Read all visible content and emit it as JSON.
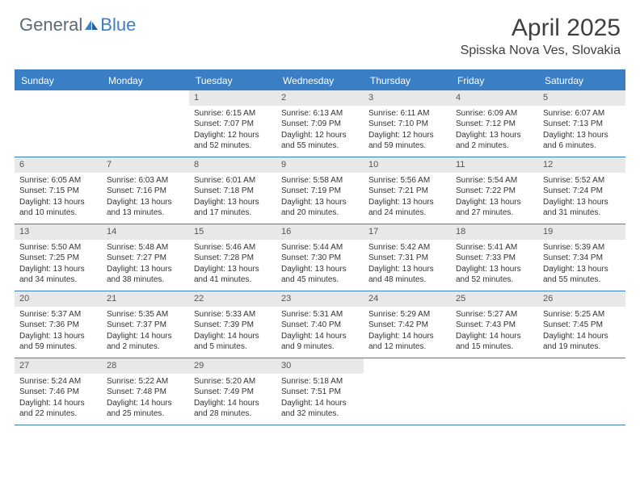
{
  "logo": {
    "general": "General",
    "blue": "Blue"
  },
  "title": "April 2025",
  "location": "Spisska Nova Ves, Slovakia",
  "header_bg": "#3a7fc4",
  "weekdays": [
    "Sunday",
    "Monday",
    "Tuesday",
    "Wednesday",
    "Thursday",
    "Friday",
    "Saturday"
  ],
  "weeks": [
    [
      {
        "num": "",
        "sunrise": "",
        "sunset": "",
        "daylight": ""
      },
      {
        "num": "",
        "sunrise": "",
        "sunset": "",
        "daylight": ""
      },
      {
        "num": "1",
        "sunrise": "Sunrise: 6:15 AM",
        "sunset": "Sunset: 7:07 PM",
        "daylight": "Daylight: 12 hours and 52 minutes."
      },
      {
        "num": "2",
        "sunrise": "Sunrise: 6:13 AM",
        "sunset": "Sunset: 7:09 PM",
        "daylight": "Daylight: 12 hours and 55 minutes."
      },
      {
        "num": "3",
        "sunrise": "Sunrise: 6:11 AM",
        "sunset": "Sunset: 7:10 PM",
        "daylight": "Daylight: 12 hours and 59 minutes."
      },
      {
        "num": "4",
        "sunrise": "Sunrise: 6:09 AM",
        "sunset": "Sunset: 7:12 PM",
        "daylight": "Daylight: 13 hours and 2 minutes."
      },
      {
        "num": "5",
        "sunrise": "Sunrise: 6:07 AM",
        "sunset": "Sunset: 7:13 PM",
        "daylight": "Daylight: 13 hours and 6 minutes."
      }
    ],
    [
      {
        "num": "6",
        "sunrise": "Sunrise: 6:05 AM",
        "sunset": "Sunset: 7:15 PM",
        "daylight": "Daylight: 13 hours and 10 minutes."
      },
      {
        "num": "7",
        "sunrise": "Sunrise: 6:03 AM",
        "sunset": "Sunset: 7:16 PM",
        "daylight": "Daylight: 13 hours and 13 minutes."
      },
      {
        "num": "8",
        "sunrise": "Sunrise: 6:01 AM",
        "sunset": "Sunset: 7:18 PM",
        "daylight": "Daylight: 13 hours and 17 minutes."
      },
      {
        "num": "9",
        "sunrise": "Sunrise: 5:58 AM",
        "sunset": "Sunset: 7:19 PM",
        "daylight": "Daylight: 13 hours and 20 minutes."
      },
      {
        "num": "10",
        "sunrise": "Sunrise: 5:56 AM",
        "sunset": "Sunset: 7:21 PM",
        "daylight": "Daylight: 13 hours and 24 minutes."
      },
      {
        "num": "11",
        "sunrise": "Sunrise: 5:54 AM",
        "sunset": "Sunset: 7:22 PM",
        "daylight": "Daylight: 13 hours and 27 minutes."
      },
      {
        "num": "12",
        "sunrise": "Sunrise: 5:52 AM",
        "sunset": "Sunset: 7:24 PM",
        "daylight": "Daylight: 13 hours and 31 minutes."
      }
    ],
    [
      {
        "num": "13",
        "sunrise": "Sunrise: 5:50 AM",
        "sunset": "Sunset: 7:25 PM",
        "daylight": "Daylight: 13 hours and 34 minutes."
      },
      {
        "num": "14",
        "sunrise": "Sunrise: 5:48 AM",
        "sunset": "Sunset: 7:27 PM",
        "daylight": "Daylight: 13 hours and 38 minutes."
      },
      {
        "num": "15",
        "sunrise": "Sunrise: 5:46 AM",
        "sunset": "Sunset: 7:28 PM",
        "daylight": "Daylight: 13 hours and 41 minutes."
      },
      {
        "num": "16",
        "sunrise": "Sunrise: 5:44 AM",
        "sunset": "Sunset: 7:30 PM",
        "daylight": "Daylight: 13 hours and 45 minutes."
      },
      {
        "num": "17",
        "sunrise": "Sunrise: 5:42 AM",
        "sunset": "Sunset: 7:31 PM",
        "daylight": "Daylight: 13 hours and 48 minutes."
      },
      {
        "num": "18",
        "sunrise": "Sunrise: 5:41 AM",
        "sunset": "Sunset: 7:33 PM",
        "daylight": "Daylight: 13 hours and 52 minutes."
      },
      {
        "num": "19",
        "sunrise": "Sunrise: 5:39 AM",
        "sunset": "Sunset: 7:34 PM",
        "daylight": "Daylight: 13 hours and 55 minutes."
      }
    ],
    [
      {
        "num": "20",
        "sunrise": "Sunrise: 5:37 AM",
        "sunset": "Sunset: 7:36 PM",
        "daylight": "Daylight: 13 hours and 59 minutes."
      },
      {
        "num": "21",
        "sunrise": "Sunrise: 5:35 AM",
        "sunset": "Sunset: 7:37 PM",
        "daylight": "Daylight: 14 hours and 2 minutes."
      },
      {
        "num": "22",
        "sunrise": "Sunrise: 5:33 AM",
        "sunset": "Sunset: 7:39 PM",
        "daylight": "Daylight: 14 hours and 5 minutes."
      },
      {
        "num": "23",
        "sunrise": "Sunrise: 5:31 AM",
        "sunset": "Sunset: 7:40 PM",
        "daylight": "Daylight: 14 hours and 9 minutes."
      },
      {
        "num": "24",
        "sunrise": "Sunrise: 5:29 AM",
        "sunset": "Sunset: 7:42 PM",
        "daylight": "Daylight: 14 hours and 12 minutes."
      },
      {
        "num": "25",
        "sunrise": "Sunrise: 5:27 AM",
        "sunset": "Sunset: 7:43 PM",
        "daylight": "Daylight: 14 hours and 15 minutes."
      },
      {
        "num": "26",
        "sunrise": "Sunrise: 5:25 AM",
        "sunset": "Sunset: 7:45 PM",
        "daylight": "Daylight: 14 hours and 19 minutes."
      }
    ],
    [
      {
        "num": "27",
        "sunrise": "Sunrise: 5:24 AM",
        "sunset": "Sunset: 7:46 PM",
        "daylight": "Daylight: 14 hours and 22 minutes."
      },
      {
        "num": "28",
        "sunrise": "Sunrise: 5:22 AM",
        "sunset": "Sunset: 7:48 PM",
        "daylight": "Daylight: 14 hours and 25 minutes."
      },
      {
        "num": "29",
        "sunrise": "Sunrise: 5:20 AM",
        "sunset": "Sunset: 7:49 PM",
        "daylight": "Daylight: 14 hours and 28 minutes."
      },
      {
        "num": "30",
        "sunrise": "Sunrise: 5:18 AM",
        "sunset": "Sunset: 7:51 PM",
        "daylight": "Daylight: 14 hours and 32 minutes."
      },
      {
        "num": "",
        "sunrise": "",
        "sunset": "",
        "daylight": ""
      },
      {
        "num": "",
        "sunrise": "",
        "sunset": "",
        "daylight": ""
      },
      {
        "num": "",
        "sunrise": "",
        "sunset": "",
        "daylight": ""
      }
    ]
  ]
}
